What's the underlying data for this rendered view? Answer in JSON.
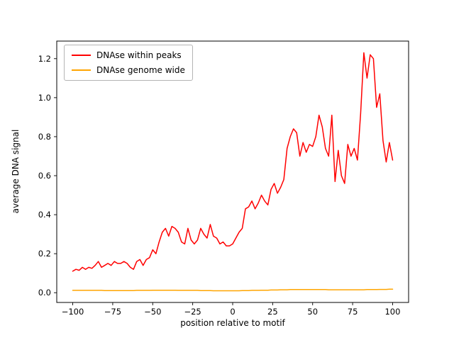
{
  "chart_data": {
    "type": "line",
    "title": "",
    "xlabel": "position relative to motif",
    "ylabel": "average DNA signal",
    "xlim": [
      -110,
      110
    ],
    "ylim": [
      -0.05,
      1.29
    ],
    "grid": false,
    "legend_position": "upper left",
    "xticks": [
      -100,
      -75,
      -50,
      -25,
      0,
      25,
      50,
      75,
      100
    ],
    "xtick_labels": [
      "−100",
      "−75",
      "−50",
      "−25",
      "0",
      "25",
      "50",
      "75",
      "100"
    ],
    "yticks": [
      0.0,
      0.2,
      0.4,
      0.6,
      0.8,
      1.0,
      1.2
    ],
    "ytick_labels": [
      "0.0",
      "0.2",
      "0.4",
      "0.6",
      "0.8",
      "1.0",
      "1.2"
    ],
    "x": [
      -100,
      -98,
      -96,
      -94,
      -92,
      -90,
      -88,
      -86,
      -84,
      -82,
      -80,
      -78,
      -76,
      -74,
      -72,
      -70,
      -68,
      -66,
      -64,
      -62,
      -60,
      -58,
      -56,
      -54,
      -52,
      -50,
      -48,
      -46,
      -44,
      -42,
      -40,
      -38,
      -36,
      -34,
      -32,
      -30,
      -28,
      -26,
      -24,
      -22,
      -20,
      -18,
      -16,
      -14,
      -12,
      -10,
      -8,
      -6,
      -4,
      -2,
      0,
      2,
      4,
      6,
      8,
      10,
      12,
      14,
      16,
      18,
      20,
      22,
      24,
      26,
      28,
      30,
      32,
      34,
      36,
      38,
      40,
      42,
      44,
      46,
      48,
      50,
      52,
      54,
      56,
      58,
      60,
      62,
      64,
      66,
      68,
      70,
      72,
      74,
      76,
      78,
      80,
      82,
      84,
      86,
      88,
      90,
      92,
      94,
      96,
      98,
      100
    ],
    "series": [
      {
        "name": "DNAse within peaks",
        "color": "#ff0000",
        "values": [
          0.11,
          0.12,
          0.115,
          0.13,
          0.12,
          0.13,
          0.125,
          0.14,
          0.16,
          0.13,
          0.14,
          0.15,
          0.14,
          0.16,
          0.15,
          0.15,
          0.16,
          0.15,
          0.13,
          0.12,
          0.16,
          0.17,
          0.14,
          0.17,
          0.18,
          0.22,
          0.2,
          0.26,
          0.31,
          0.33,
          0.29,
          0.34,
          0.33,
          0.31,
          0.26,
          0.25,
          0.33,
          0.27,
          0.25,
          0.27,
          0.33,
          0.3,
          0.28,
          0.35,
          0.29,
          0.28,
          0.25,
          0.26,
          0.24,
          0.24,
          0.25,
          0.28,
          0.31,
          0.33,
          0.43,
          0.44,
          0.47,
          0.43,
          0.46,
          0.5,
          0.47,
          0.45,
          0.53,
          0.56,
          0.51,
          0.54,
          0.58,
          0.74,
          0.8,
          0.84,
          0.82,
          0.7,
          0.77,
          0.72,
          0.76,
          0.75,
          0.8,
          0.91,
          0.85,
          0.74,
          0.7,
          0.91,
          0.57,
          0.73,
          0.6,
          0.56,
          0.76,
          0.7,
          0.74,
          0.68,
          0.92,
          1.23,
          1.1,
          1.22,
          1.2,
          0.95,
          1.02,
          0.78,
          0.67,
          0.77,
          0.68
        ]
      },
      {
        "name": "DNAse genome wide",
        "color": "#ffa500",
        "values": [
          0.012,
          0.012,
          0.012,
          0.012,
          0.012,
          0.012,
          0.012,
          0.012,
          0.012,
          0.012,
          0.011,
          0.011,
          0.011,
          0.011,
          0.011,
          0.011,
          0.011,
          0.011,
          0.011,
          0.011,
          0.012,
          0.012,
          0.012,
          0.012,
          0.012,
          0.013,
          0.013,
          0.013,
          0.013,
          0.013,
          0.013,
          0.013,
          0.013,
          0.012,
          0.012,
          0.012,
          0.012,
          0.012,
          0.012,
          0.012,
          0.011,
          0.011,
          0.011,
          0.011,
          0.01,
          0.01,
          0.01,
          0.01,
          0.01,
          0.01,
          0.01,
          0.01,
          0.01,
          0.011,
          0.011,
          0.011,
          0.012,
          0.012,
          0.012,
          0.013,
          0.013,
          0.013,
          0.014,
          0.014,
          0.014,
          0.015,
          0.015,
          0.015,
          0.016,
          0.016,
          0.016,
          0.016,
          0.016,
          0.016,
          0.016,
          0.016,
          0.016,
          0.016,
          0.016,
          0.016,
          0.015,
          0.015,
          0.015,
          0.015,
          0.015,
          0.015,
          0.015,
          0.015,
          0.015,
          0.015,
          0.015,
          0.015,
          0.016,
          0.016,
          0.016,
          0.016,
          0.017,
          0.017,
          0.017,
          0.018,
          0.018
        ]
      }
    ]
  }
}
